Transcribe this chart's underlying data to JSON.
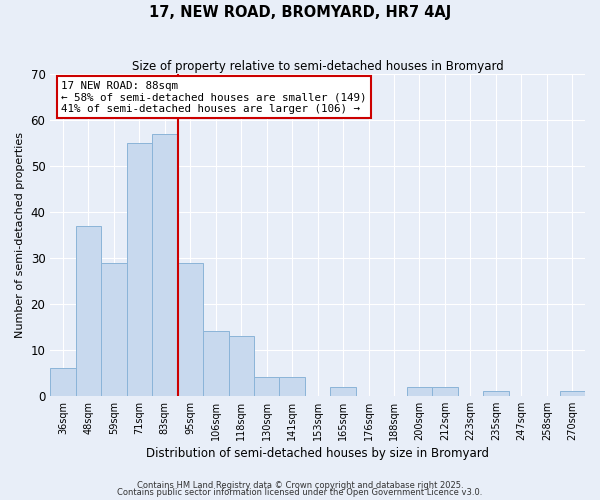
{
  "title": "17, NEW ROAD, BROMYARD, HR7 4AJ",
  "subtitle": "Size of property relative to semi-detached houses in Bromyard",
  "xlabel": "Distribution of semi-detached houses by size in Bromyard",
  "ylabel": "Number of semi-detached properties",
  "categories": [
    "36sqm",
    "48sqm",
    "59sqm",
    "71sqm",
    "83sqm",
    "95sqm",
    "106sqm",
    "118sqm",
    "130sqm",
    "141sqm",
    "153sqm",
    "165sqm",
    "176sqm",
    "188sqm",
    "200sqm",
    "212sqm",
    "223sqm",
    "235sqm",
    "247sqm",
    "258sqm",
    "270sqm"
  ],
  "values": [
    6,
    37,
    29,
    55,
    57,
    29,
    14,
    13,
    4,
    4,
    0,
    2,
    0,
    0,
    2,
    2,
    0,
    1,
    0,
    0,
    1
  ],
  "bar_color": "#c8d9ee",
  "bar_edge_color": "#8bb4d8",
  "vline_x": 4.5,
  "vline_color": "#cc0000",
  "ylim": [
    0,
    70
  ],
  "yticks": [
    0,
    10,
    20,
    30,
    40,
    50,
    60,
    70
  ],
  "annotation_title": "17 NEW ROAD: 88sqm",
  "annotation_line1": "← 58% of semi-detached houses are smaller (149)",
  "annotation_line2": "41% of semi-detached houses are larger (106) →",
  "annotation_box_color": "#ffffff",
  "annotation_box_edge": "#cc0000",
  "footer1": "Contains HM Land Registry data © Crown copyright and database right 2025.",
  "footer2": "Contains public sector information licensed under the Open Government Licence v3.0.",
  "background_color": "#e8eef8",
  "grid_color": "#ffffff"
}
